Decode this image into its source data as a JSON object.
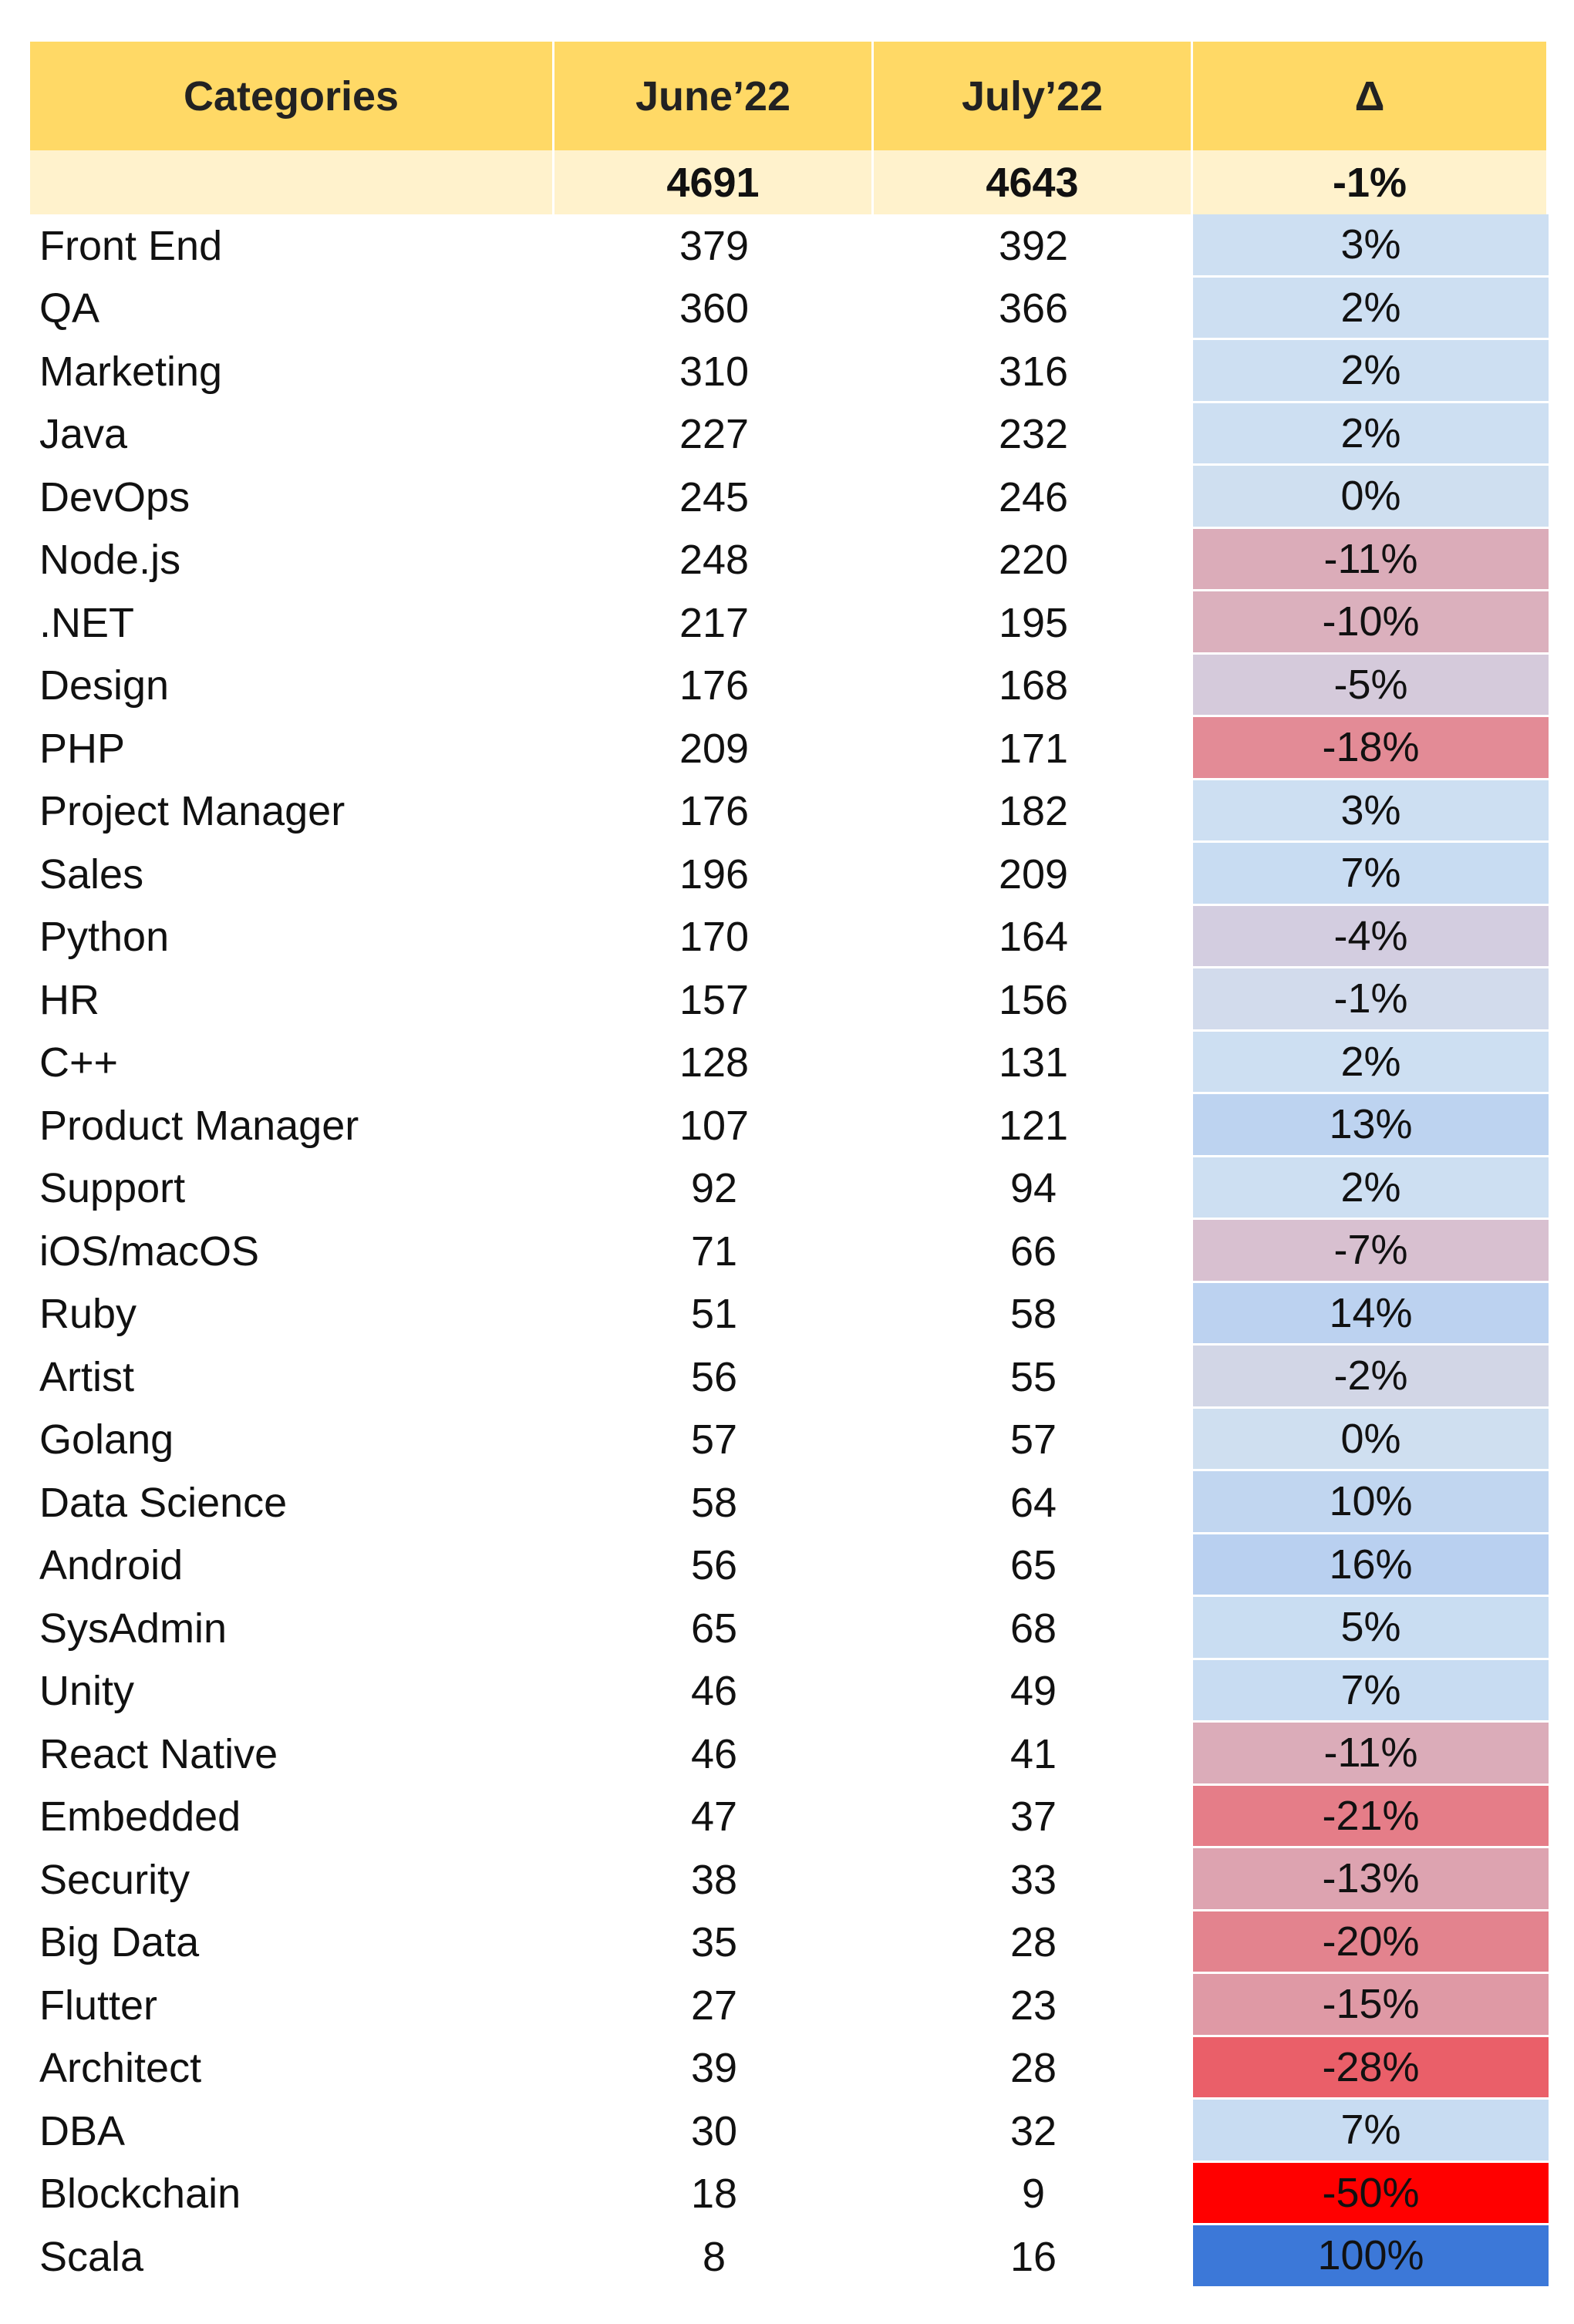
{
  "table": {
    "header": [
      "Categories",
      "June’22",
      "July’22",
      "Δ"
    ],
    "total": {
      "june": 4691,
      "july": 4643,
      "delta": "-1%"
    },
    "rows": [
      {
        "category": "Front End",
        "june": 379,
        "july": 392,
        "delta": "3%",
        "color": "#cddff2"
      },
      {
        "category": "QA",
        "june": 360,
        "july": 366,
        "delta": "2%",
        "color": "#cddff2"
      },
      {
        "category": "Marketing",
        "june": 310,
        "july": 316,
        "delta": "2%",
        "color": "#cddff2"
      },
      {
        "category": "Java",
        "june": 227,
        "july": 232,
        "delta": "2%",
        "color": "#cddff2"
      },
      {
        "category": "DevOps",
        "june": 245,
        "july": 246,
        "delta": "0%",
        "color": "#cfdff0"
      },
      {
        "category": "Node.js",
        "june": 248,
        "july": 220,
        "delta": "-11%",
        "color": "#dbacb9"
      },
      {
        "category": ".NET",
        "june": 217,
        "july": 195,
        "delta": "-10%",
        "color": "#dbb0bd"
      },
      {
        "category": "Design",
        "june": 176,
        "july": 168,
        "delta": "-5%",
        "color": "#d5cadb"
      },
      {
        "category": "PHP",
        "june": 209,
        "july": 171,
        "delta": "-18%",
        "color": "#e38b96"
      },
      {
        "category": "Project Manager",
        "june": 176,
        "july": 182,
        "delta": "3%",
        "color": "#cddff2"
      },
      {
        "category": "Sales",
        "june": 196,
        "july": 209,
        "delta": "7%",
        "color": "#c8dcf2"
      },
      {
        "category": "Python",
        "june": 170,
        "july": 164,
        "delta": "-4%",
        "color": "#d3cde0"
      },
      {
        "category": "HR",
        "june": 157,
        "july": 156,
        "delta": "-1%",
        "color": "#d2dbec"
      },
      {
        "category": "C++",
        "june": 128,
        "july": 131,
        "delta": "2%",
        "color": "#cddff2"
      },
      {
        "category": "Product Manager",
        "june": 107,
        "july": 121,
        "delta": "13%",
        "color": "#bdd3f0"
      },
      {
        "category": "Support",
        "june": 92,
        "july": 94,
        "delta": "2%",
        "color": "#cddff2"
      },
      {
        "category": "iOS/macOS",
        "june": 71,
        "july": 66,
        "delta": "-7%",
        "color": "#d8c0d0"
      },
      {
        "category": "Ruby",
        "june": 51,
        "july": 58,
        "delta": "14%",
        "color": "#bcd2f0"
      },
      {
        "category": "Artist",
        "june": 56,
        "july": 55,
        "delta": "-2%",
        "color": "#d2d6e6"
      },
      {
        "category": "Golang",
        "june": 57,
        "july": 57,
        "delta": "0%",
        "color": "#cfdff0"
      },
      {
        "category": "Data Science",
        "june": 58,
        "july": 64,
        "delta": "10%",
        "color": "#c1d6f0"
      },
      {
        "category": "Android",
        "june": 56,
        "july": 65,
        "delta": "16%",
        "color": "#b9d0f0"
      },
      {
        "category": "SysAdmin",
        "june": 65,
        "july": 68,
        "delta": "5%",
        "color": "#c9ddf2"
      },
      {
        "category": "Unity",
        "june": 46,
        "july": 49,
        "delta": "7%",
        "color": "#c8dcf2"
      },
      {
        "category": "React Native",
        "june": 46,
        "july": 41,
        "delta": "-11%",
        "color": "#dbacb9"
      },
      {
        "category": "Embedded",
        "june": 47,
        "july": 37,
        "delta": "-21%",
        "color": "#e57d88"
      },
      {
        "category": "Security",
        "june": 38,
        "july": 33,
        "delta": "-13%",
        "color": "#dda3b0"
      },
      {
        "category": "Big Data",
        "june": 35,
        "july": 28,
        "delta": "-20%",
        "color": "#e3838e"
      },
      {
        "category": "Flutter",
        "june": 27,
        "july": 23,
        "delta": "-15%",
        "color": "#df99a5"
      },
      {
        "category": "Architect",
        "june": 39,
        "july": 28,
        "delta": "-28%",
        "color": "#ea5f69"
      },
      {
        "category": "DBA",
        "june": 30,
        "july": 32,
        "delta": "7%",
        "color": "#c8dcf2"
      },
      {
        "category": "Blockchain",
        "june": 18,
        "july": 9,
        "delta": "-50%",
        "color": "#ff0000"
      },
      {
        "category": "Scala",
        "june": 8,
        "july": 16,
        "delta": "100%",
        "color": "#3c78d8"
      }
    ]
  }
}
